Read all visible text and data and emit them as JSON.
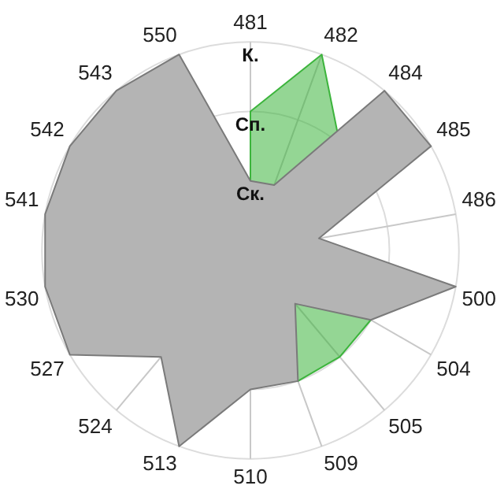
{
  "chart_data": {
    "type": "radar",
    "categories": [
      "481",
      "482",
      "484",
      "485",
      "486",
      "500",
      "504",
      "505",
      "509",
      "510",
      "513",
      "524",
      "527",
      "530",
      "541",
      "542",
      "543",
      "550"
    ],
    "series": [
      {
        "color": "#b4b4b4",
        "values": [
          1,
          1,
          3,
          3,
          1,
          3,
          2,
          1,
          2,
          2,
          3,
          2,
          3,
          3,
          3,
          3,
          3,
          3
        ]
      },
      {
        "color": "#3cb43c",
        "values": [
          2,
          3,
          2,
          0.3,
          0,
          0,
          2,
          2,
          2,
          0,
          0,
          1,
          2,
          2,
          0.3,
          0,
          0,
          0
        ]
      }
    ],
    "ylim": [
      0,
      3
    ],
    "yticks": [
      {
        "value": 1,
        "label": "Ск."
      },
      {
        "value": 2,
        "label": "Сп."
      },
      {
        "value": 3,
        "label": "К."
      }
    ],
    "grid": true,
    "legend": false,
    "marker": "none"
  }
}
